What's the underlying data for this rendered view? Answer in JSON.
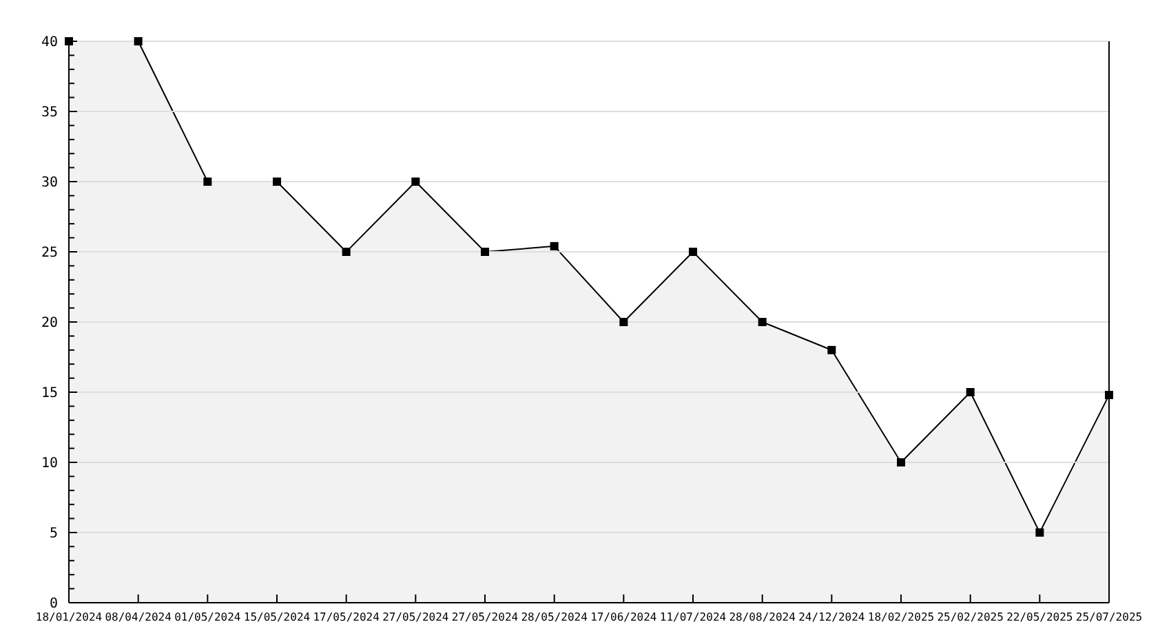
{
  "chart_data": {
    "type": "area",
    "categories": [
      "18/01/2024",
      "08/04/2024",
      "01/05/2024",
      "15/05/2024",
      "17/05/2024",
      "27/05/2024",
      "27/05/2024",
      "28/05/2024",
      "17/06/2024",
      "11/07/2024",
      "28/08/2024",
      "24/12/2024",
      "18/02/2025",
      "25/02/2025",
      "22/05/2025",
      "25/07/2025"
    ],
    "series": [
      {
        "color": "#000000",
        "values": [
          40,
          40,
          30,
          30,
          25,
          30,
          25,
          25.4,
          20,
          25,
          20,
          18,
          10,
          15,
          5,
          14.8
        ]
      }
    ],
    "ylim": [
      0,
      40
    ],
    "yticks": [
      0,
      {
        "value": 1,
        "label": null
      },
      {
        "value": 2,
        "label": null
      },
      {
        "value": 3,
        "label": null
      },
      {
        "value": 4,
        "label": null
      },
      5,
      {
        "value": 6,
        "label": null
      },
      {
        "value": 7,
        "label": null
      },
      {
        "value": 8,
        "label": null
      },
      {
        "value": 9,
        "label": null
      },
      10,
      {
        "value": 11,
        "label": null
      },
      {
        "value": 12,
        "label": null
      },
      {
        "value": 13,
        "label": null
      },
      {
        "value": 14,
        "label": null
      },
      15,
      {
        "value": 16,
        "label": null
      },
      {
        "value": 17,
        "label": null
      },
      {
        "value": 18,
        "label": null
      },
      {
        "value": 19,
        "label": null
      },
      20,
      {
        "value": 21,
        "label": null
      },
      {
        "value": 22,
        "label": null
      },
      {
        "value": 23,
        "label": null
      },
      {
        "value": 24,
        "label": null
      },
      25,
      {
        "value": 26,
        "label": null
      },
      {
        "value": 27,
        "label": null
      },
      {
        "value": 28,
        "label": null
      },
      {
        "value": 29,
        "label": null
      },
      30,
      {
        "value": 31,
        "label": null
      },
      {
        "value": 32,
        "label": null
      },
      {
        "value": 33,
        "label": null
      },
      {
        "value": 34,
        "label": null
      },
      35,
      {
        "value": 36,
        "label": null
      },
      {
        "value": 37,
        "label": null
      },
      {
        "value": 38,
        "label": null
      },
      {
        "value": 39,
        "label": null
      },
      40
    ],
    "grid": "y",
    "marker": "square",
    "line_style": "solid"
  }
}
